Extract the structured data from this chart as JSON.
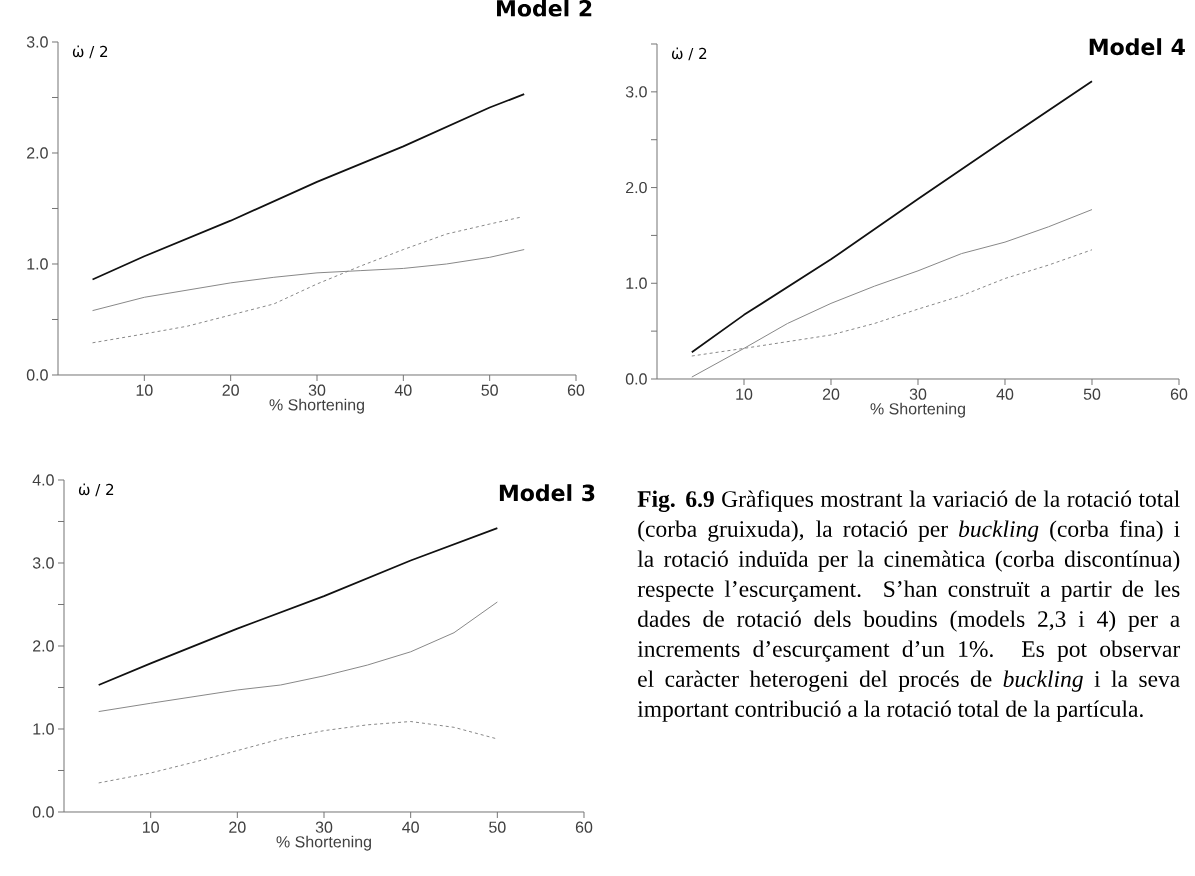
{
  "chart_data": [
    {
      "type": "line",
      "title": "Model 2",
      "ylabel": "ω̇ / 2",
      "xlabel": "% Shortening",
      "xlim": [
        0,
        60
      ],
      "ylim": [
        0,
        3
      ],
      "xticks": [
        10,
        20,
        30,
        40,
        50,
        60
      ],
      "yticks": [
        {
          "value": 0,
          "label": "0.0"
        },
        {
          "value": 0.5,
          "label": null
        },
        {
          "value": 1,
          "label": "1.0"
        },
        {
          "value": 1.5,
          "label": null
        },
        {
          "value": 2,
          "label": "2.0"
        },
        {
          "value": 2.5,
          "label": null
        },
        {
          "value": 3,
          "label": "3.0"
        }
      ],
      "series": [
        {
          "color": "#111111",
          "line_style": "solid",
          "x": [
            4,
            10,
            20,
            30,
            40,
            50,
            54
          ],
          "values": [
            0.86,
            1.07,
            1.39,
            1.74,
            2.06,
            2.41,
            2.53
          ]
        },
        {
          "color": "#888888",
          "line_style": "solid",
          "x": [
            4,
            10,
            20,
            25,
            30,
            35,
            40,
            45,
            50,
            54
          ],
          "values": [
            0.58,
            0.7,
            0.83,
            0.88,
            0.92,
            0.94,
            0.96,
            1.0,
            1.06,
            1.13
          ]
        },
        {
          "color": "#888888",
          "line_style": "dashed",
          "x": [
            4,
            10,
            15,
            20,
            25,
            30,
            35,
            40,
            45,
            50,
            53.5
          ],
          "values": [
            0.29,
            0.37,
            0.44,
            0.54,
            0.64,
            0.82,
            0.98,
            1.13,
            1.27,
            1.36,
            1.42
          ]
        }
      ]
    },
    {
      "type": "line",
      "title": "Model 4",
      "ylabel": "ω̇ / 2",
      "xlabel": "% Shortening",
      "xlim": [
        0,
        60
      ],
      "ylim": [
        0,
        3.5
      ],
      "xticks": [
        10,
        20,
        30,
        40,
        50,
        60
      ],
      "yticks": [
        {
          "value": 0,
          "label": "0.0"
        },
        {
          "value": 0.5,
          "label": null
        },
        {
          "value": 1,
          "label": "1.0"
        },
        {
          "value": 1.5,
          "label": null
        },
        {
          "value": 2,
          "label": "2.0"
        },
        {
          "value": 2.5,
          "label": null
        },
        {
          "value": 3,
          "label": "3.0"
        },
        {
          "value": 3.5,
          "label": null
        }
      ],
      "series": [
        {
          "color": "#111111",
          "line_style": "solid",
          "x": [
            4,
            10,
            20,
            30,
            40,
            50
          ],
          "values": [
            0.28,
            0.67,
            1.25,
            1.88,
            2.5,
            3.11
          ]
        },
        {
          "color": "#888888",
          "line_style": "solid",
          "x": [
            4,
            10,
            15,
            20,
            25,
            30,
            35,
            40,
            45,
            50
          ],
          "values": [
            0.02,
            0.32,
            0.58,
            0.79,
            0.97,
            1.13,
            1.31,
            1.43,
            1.59,
            1.77
          ]
        },
        {
          "color": "#888888",
          "line_style": "dashed",
          "x": [
            4,
            10,
            20,
            25,
            30,
            35,
            40,
            45,
            50
          ],
          "values": [
            0.24,
            0.32,
            0.46,
            0.58,
            0.73,
            0.87,
            1.05,
            1.19,
            1.35
          ]
        }
      ]
    },
    {
      "type": "line",
      "title": "Model 3",
      "ylabel": "ω̇ / 2",
      "xlabel": "% Shortening",
      "xlim": [
        0,
        60
      ],
      "ylim": [
        0,
        4
      ],
      "xticks": [
        10,
        20,
        30,
        40,
        50,
        60
      ],
      "yticks": [
        {
          "value": 0,
          "label": "0.0"
        },
        {
          "value": 0.5,
          "label": null
        },
        {
          "value": 1,
          "label": "1.0"
        },
        {
          "value": 1.5,
          "label": null
        },
        {
          "value": 2,
          "label": "2.0"
        },
        {
          "value": 2.5,
          "label": null
        },
        {
          "value": 3,
          "label": "3.0"
        },
        {
          "value": 3.5,
          "label": null
        },
        {
          "value": 4,
          "label": "4.0"
        }
      ],
      "series": [
        {
          "color": "#111111",
          "line_style": "solid",
          "x": [
            4,
            10,
            20,
            30,
            40,
            50
          ],
          "values": [
            1.53,
            1.79,
            2.21,
            2.6,
            3.03,
            3.42
          ]
        },
        {
          "color": "#888888",
          "line_style": "solid",
          "x": [
            4,
            10,
            20,
            25,
            30,
            35,
            40,
            45,
            50
          ],
          "values": [
            1.21,
            1.31,
            1.47,
            1.53,
            1.64,
            1.77,
            1.93,
            2.16,
            2.53
          ]
        },
        {
          "color": "#888888",
          "line_style": "dashed",
          "x": [
            4,
            10,
            15,
            20,
            25,
            30,
            35,
            40,
            45,
            50
          ],
          "values": [
            0.35,
            0.47,
            0.6,
            0.74,
            0.88,
            0.98,
            1.05,
            1.09,
            1.02,
            0.88
          ]
        }
      ]
    },
    {
      "type": "other",
      "annotations": [
        "**Fig. 6.9** Gràfiques mostrant la variació de la rotació total (corba gruixuda), la rotació per *buckling* (corba fina) i la rotació induïda per la cinemàtica (corba discontínua) respecte l’escurçament. S’han construït a partir de les dades de rotació dels boudins (models 2,3 i 4) per a increments d’escurçament d’un 1%. Es pot observar el caràcter heterogeni del procés de *buckling* i la seva important contribució a la rotació total de la partícula."
      ]
    }
  ]
}
